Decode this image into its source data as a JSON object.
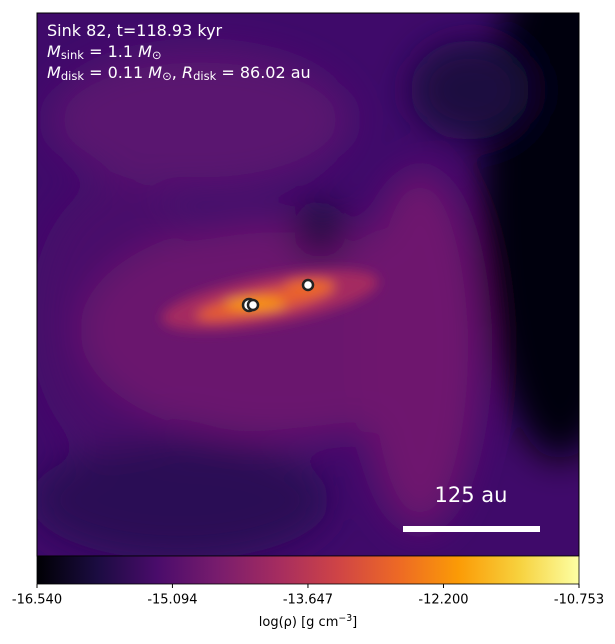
{
  "chart_data": {
    "type": "image",
    "annotations": [
      [
        {
          "t": "Sink 82, t=118.93 kyr",
          "style": "normal"
        }
      ],
      [
        {
          "t": "M",
          "style": "italic"
        },
        {
          "t": "sink",
          "style": "sub"
        },
        {
          "t": " = 1.1 ",
          "style": "normal"
        },
        {
          "t": "M",
          "style": "italic"
        },
        {
          "t": "⊙",
          "style": "sub"
        }
      ],
      [
        {
          "t": "M",
          "style": "italic"
        },
        {
          "t": "disk",
          "style": "sub"
        },
        {
          "t": " = 0.11 ",
          "style": "normal"
        },
        {
          "t": "M",
          "style": "italic"
        },
        {
          "t": "⊙",
          "style": "sub"
        },
        {
          "t": ", ",
          "style": "normal"
        },
        {
          "t": "R",
          "style": "italic"
        },
        {
          "t": "disk",
          "style": "sub"
        },
        {
          "t": " = 86.02 au",
          "style": "normal"
        }
      ]
    ],
    "scale_bar_label": "125 au",
    "colorbar": {
      "label": [
        {
          "t": "log(ρ) [g cm",
          "style": "normal"
        },
        {
          "t": "−3",
          "style": "sup"
        },
        {
          "t": "]",
          "style": "normal"
        }
      ],
      "lim": [
        -16.54,
        -10.753
      ],
      "ticks": [
        {
          "value": -16.54,
          "label": "-16.540"
        },
        -15.094,
        -13.647,
        {
          "value": -12.2,
          "label": "-12.200"
        },
        -10.753
      ],
      "colormap": "inferno",
      "colors": [
        "#000004",
        "#1b0c41",
        "#4a0c6b",
        "#781c6d",
        "#a52c60",
        "#cf4446",
        "#ed6925",
        "#fb9b06",
        "#f7d13d",
        "#fcffa4"
      ]
    }
  }
}
